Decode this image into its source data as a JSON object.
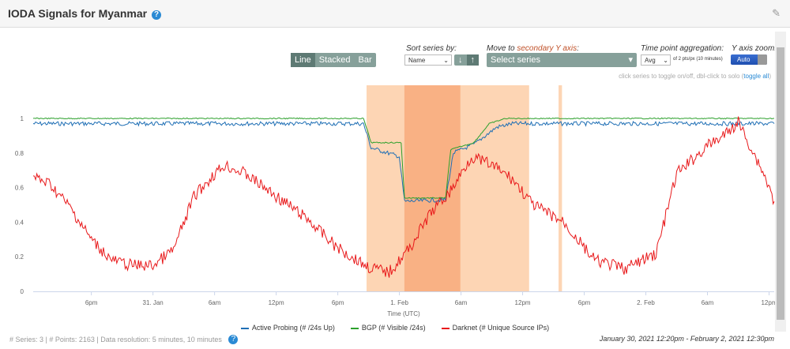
{
  "header": {
    "title": "IODA Signals for Myanmar",
    "help_icon": "question-circle-icon",
    "edit_icon": "external-edit-icon"
  },
  "toolbar": {
    "chart_types": [
      "Line",
      "Stacked",
      "Bar"
    ],
    "active_type": "Line",
    "sort_label": "Sort series by:",
    "sort_value": "Name",
    "move_label_prefix": "Move to ",
    "move_label_accent": "secondary Y axis",
    "move_label_suffix": ":",
    "select_series": "Select series",
    "agg_label": "Time point aggregation:",
    "agg_value": "Avg",
    "agg_note": "of 2 pts/px (10 minutes)",
    "yzoom_label": "Y axis zoom:",
    "yzoom_value": "Auto",
    "hint_prefix": "click series to toggle on/off, dbl-click to solo (",
    "hint_link": "toggle all",
    "hint_suffix": ")"
  },
  "footer": {
    "series": "# Series: 3 | # Points: 2163 | Data resolution: 5 minutes, 10 minutes",
    "range": "January 30, 2021 12:20pm - February 2, 2021 12:30pm"
  },
  "chart_data": {
    "type": "line",
    "xlabel": "Time (UTC)",
    "ylabel": "",
    "xlim": [
      "2021-01-30 12:20",
      "2021-02-02 12:30"
    ],
    "ylim": [
      0,
      1
    ],
    "yticks": [
      "0",
      "0.2",
      "0.4",
      "0.6",
      "0.8",
      "1"
    ],
    "xticks": [
      {
        "t": "2021-01-30 18:00",
        "label": "6pm"
      },
      {
        "t": "2021-01-31 00:00",
        "label": "31. Jan"
      },
      {
        "t": "2021-01-31 06:00",
        "label": "6am"
      },
      {
        "t": "2021-01-31 12:00",
        "label": "12pm"
      },
      {
        "t": "2021-01-31 18:00",
        "label": "6pm"
      },
      {
        "t": "2021-02-01 00:00",
        "label": "1. Feb"
      },
      {
        "t": "2021-02-01 06:00",
        "label": "6am"
      },
      {
        "t": "2021-02-01 12:00",
        "label": "12pm"
      },
      {
        "t": "2021-02-01 18:00",
        "label": "6pm"
      },
      {
        "t": "2021-02-02 00:00",
        "label": "2. Feb"
      },
      {
        "t": "2021-02-02 06:00",
        "label": "6am"
      },
      {
        "t": "2021-02-02 12:00",
        "label": "12pm"
      }
    ],
    "bands": [
      {
        "from": "2021-01-31 20:48",
        "to": "2021-02-01 12:38",
        "color": "#fdd5b4"
      },
      {
        "from": "2021-02-01 00:29",
        "to": "2021-02-01 05:56",
        "color": "#f9b184"
      },
      {
        "from": "2021-02-01 15:30",
        "to": "2021-02-01 15:50",
        "color": "#fdd5b4"
      }
    ],
    "series": [
      {
        "name": "Active Probing (# /24s Up)",
        "color": "#1f6fb5",
        "points": [
          [
            "2021-01-30 12:20",
            0.97
          ],
          [
            "2021-01-31 20:30",
            0.97
          ],
          [
            "2021-01-31 21:15",
            0.83
          ],
          [
            "2021-01-31 23:59",
            0.78
          ],
          [
            "2021-02-01 00:30",
            0.52
          ],
          [
            "2021-02-01 04:30",
            0.53
          ],
          [
            "2021-02-01 05:15",
            0.8
          ],
          [
            "2021-02-01 07:15",
            0.85
          ],
          [
            "2021-02-01 09:30",
            0.95
          ],
          [
            "2021-02-01 11:00",
            0.97
          ],
          [
            "2021-02-02 12:30",
            0.97
          ]
        ]
      },
      {
        "name": "BGP (# Visible /24s)",
        "color": "#2ca02c",
        "points": [
          [
            "2021-01-30 12:20",
            1.0
          ],
          [
            "2021-01-31 20:30",
            1.0
          ],
          [
            "2021-01-31 21:15",
            0.86
          ],
          [
            "2021-02-01 00:10",
            0.86
          ],
          [
            "2021-02-01 00:30",
            0.54
          ],
          [
            "2021-02-01 04:30",
            0.54
          ],
          [
            "2021-02-01 05:00",
            0.82
          ],
          [
            "2021-02-01 07:15",
            0.86
          ],
          [
            "2021-02-01 08:45",
            0.97
          ],
          [
            "2021-02-01 10:20",
            1.0
          ],
          [
            "2021-02-02 12:30",
            1.0
          ]
        ]
      },
      {
        "name": "Darknet (# Unique Source IPs)",
        "color": "#e8191b",
        "points": [
          [
            "2021-01-30 12:20",
            0.66
          ],
          [
            "2021-01-30 14:00",
            0.62
          ],
          [
            "2021-01-30 16:00",
            0.48
          ],
          [
            "2021-01-30 18:00",
            0.3
          ],
          [
            "2021-01-30 20:00",
            0.18
          ],
          [
            "2021-01-30 22:00",
            0.15
          ],
          [
            "2021-01-31 00:00",
            0.15
          ],
          [
            "2021-01-31 02:00",
            0.24
          ],
          [
            "2021-01-31 04:00",
            0.55
          ],
          [
            "2021-01-31 06:00",
            0.68
          ],
          [
            "2021-01-31 07:00",
            0.73
          ],
          [
            "2021-01-31 09:00",
            0.68
          ],
          [
            "2021-01-31 12:00",
            0.55
          ],
          [
            "2021-01-31 15:00",
            0.42
          ],
          [
            "2021-01-31 18:00",
            0.25
          ],
          [
            "2021-01-31 21:00",
            0.14
          ],
          [
            "2021-01-31 23:00",
            0.11
          ],
          [
            "2021-02-01 01:00",
            0.25
          ],
          [
            "2021-02-01 03:00",
            0.45
          ],
          [
            "2021-02-01 05:00",
            0.58
          ],
          [
            "2021-02-01 07:00",
            0.78
          ],
          [
            "2021-02-01 09:00",
            0.73
          ],
          [
            "2021-02-01 11:00",
            0.65
          ],
          [
            "2021-02-01 13:00",
            0.5
          ],
          [
            "2021-02-01 16:00",
            0.4
          ],
          [
            "2021-02-01 19:00",
            0.18
          ],
          [
            "2021-02-01 22:00",
            0.13
          ],
          [
            "2021-02-02 01:00",
            0.22
          ],
          [
            "2021-02-02 03:00",
            0.68
          ],
          [
            "2021-02-02 06:00",
            0.84
          ],
          [
            "2021-02-02 08:00",
            0.92
          ],
          [
            "2021-02-02 09:00",
            0.98
          ],
          [
            "2021-02-02 10:30",
            0.8
          ],
          [
            "2021-02-02 11:30",
            0.68
          ],
          [
            "2021-02-02 12:30",
            0.52
          ]
        ]
      }
    ]
  }
}
